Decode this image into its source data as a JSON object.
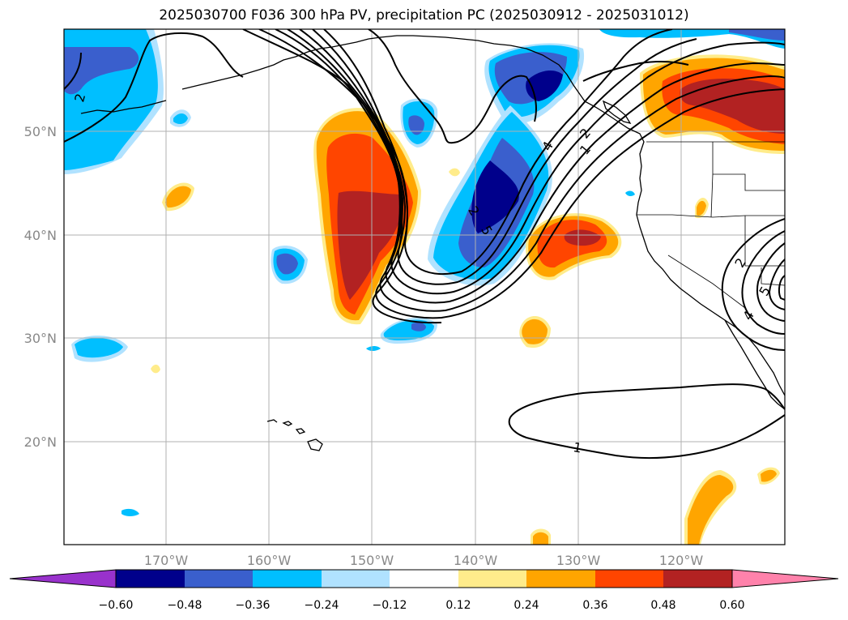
{
  "title": "2025030700 F036 300 hPa PV, precipitation PC (2025030912 - 2025031012)",
  "map": {
    "lon_labels": [
      "170°W",
      "160°W",
      "150°W",
      "140°W",
      "130°W",
      "120°W"
    ],
    "lat_labels": [
      "50°N",
      "40°N",
      "30°N",
      "20°N"
    ],
    "contour_labels": [
      "2",
      "4",
      "2",
      "1",
      "2",
      "5",
      "4",
      "2",
      "5",
      "1"
    ],
    "colors": {
      "ocean": "#ffffff",
      "grid": "#b0b0b0",
      "coast": "#000000"
    }
  },
  "colorbar": {
    "labels": [
      "−0.60",
      "−0.48",
      "−0.36",
      "−0.24",
      "−0.12",
      "0.12",
      "0.24",
      "0.36",
      "0.48",
      "0.60"
    ],
    "colors": [
      "#9932cc",
      "#00008b",
      "#3a5fcd",
      "#00bfff",
      "#b0e2ff",
      "#ffffff",
      "#ffec8b",
      "#ffa500",
      "#ff4500",
      "#b22222",
      "#ff82ab"
    ]
  }
}
